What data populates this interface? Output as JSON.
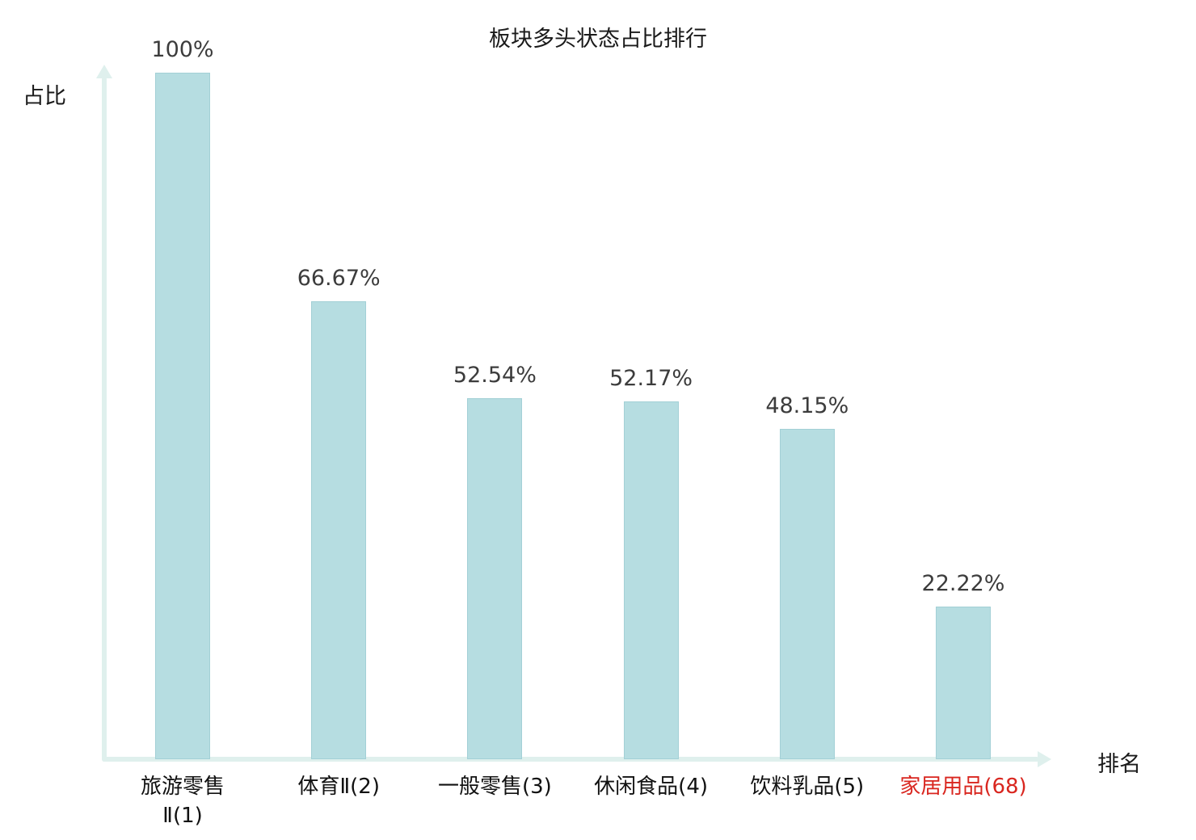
{
  "chart_data": {
    "type": "bar",
    "title": "板块多头状态占比排行",
    "xlabel": "排名",
    "ylabel": "占比",
    "ylim": [
      0,
      100
    ],
    "categories": [
      "旅游零售Ⅱ(1)",
      "体育Ⅱ(2)",
      "一般零售(3)",
      "休闲食品(4)",
      "饮料乳品(5)",
      "家居用品(68)"
    ],
    "category_lines": [
      [
        "旅游零售",
        "Ⅱ(1)"
      ],
      [
        "体育Ⅱ(2)"
      ],
      [
        "一般零售(3)"
      ],
      [
        "休闲食品(4)"
      ],
      [
        "饮料乳品(5)"
      ],
      [
        "家居用品(68)"
      ]
    ],
    "values": [
      100,
      66.67,
      52.54,
      52.17,
      48.15,
      22.22
    ],
    "value_labels": [
      "100%",
      "66.67%",
      "52.54%",
      "52.17%",
      "48.15%",
      "22.22%"
    ],
    "highlight_index": 5,
    "colors": {
      "bar_fill": "#b6dde1",
      "bar_border": "#a3d0d6",
      "axis": "#dff0ed",
      "value_text": "#3c3c3c",
      "category_text": "#111111",
      "highlight_text": "#d9261f",
      "title_text": "#1a1a1a"
    },
    "legend": null,
    "grid": false
  }
}
